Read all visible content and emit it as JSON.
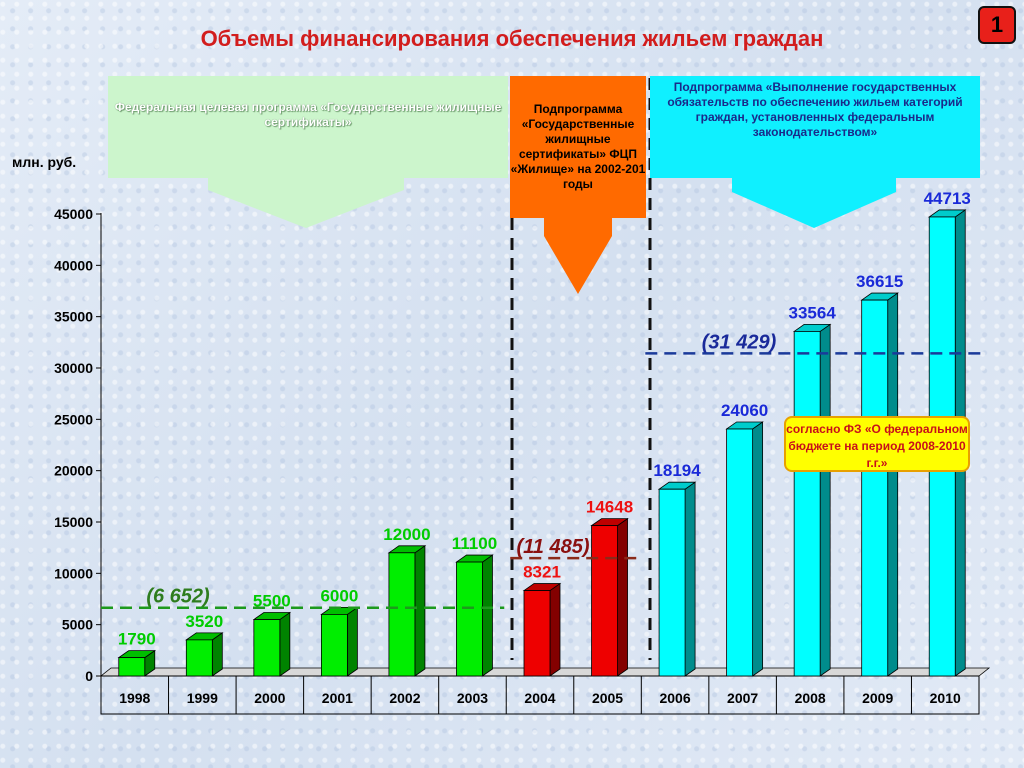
{
  "title": "Объемы финансирования обеспечения жильем граждан",
  "badge": "1",
  "callouts": {
    "left": "Федеральная целевая программа «Государственные жилищные сертификаты»",
    "middle": "Подпрограмма «Государственные жилищные сертификаты» ФЦП «Жилище» на 2002-201 годы",
    "right": "Подпрограмма «Выполнение государственных обязательств по обеспечению жильем категорий граждан, установленных федеральным законодательством»"
  },
  "note": "согласно ФЗ «О федеральном бюджете на период 2008-2010 г.г.»",
  "colors": {
    "green": "#00ee00",
    "red": "#ee0000",
    "cyan": "#00ffff",
    "label_green": "#00cc00",
    "label_red": "#ee1111",
    "label_blue": "#1a2ad8",
    "avg_green": "#2e7d1e",
    "avg_red": "#8a1010",
    "avg_blue": "#1a2a9a"
  },
  "chart_data": {
    "type": "bar",
    "ylabel": "млн. руб.",
    "ylim": [
      0,
      45000
    ],
    "yticks": [
      "0",
      "5000",
      "10000",
      "15000",
      "20000",
      "25000",
      "30000",
      "35000",
      "40000",
      "45000"
    ],
    "categories": [
      "1998",
      "1999",
      "2000",
      "2001",
      "2002",
      "2003",
      "2004",
      "2005",
      "2006",
      "2007",
      "2008",
      "2009",
      "2010"
    ],
    "values": [
      1790,
      3520,
      5500,
      6000,
      12000,
      11100,
      8321,
      14648,
      18194,
      24060,
      33564,
      36615,
      44713
    ],
    "value_labels": [
      "1790",
      "3520",
      "5500",
      "6000",
      "12000",
      "11100",
      "8321",
      "14648",
      "18194",
      "24060",
      "33564",
      "36615",
      "44713"
    ],
    "bar_groups": [
      "green",
      "green",
      "green",
      "green",
      "green",
      "green",
      "red",
      "red",
      "cyan",
      "cyan",
      "cyan",
      "cyan",
      "cyan"
    ],
    "averages": [
      {
        "label": "(6 652)",
        "value": 6652,
        "from": 0,
        "to": 5,
        "color": "green"
      },
      {
        "label": "(11 485)",
        "value": 11485,
        "from": 6,
        "to": 7,
        "color": "red"
      },
      {
        "label": "(31 429)",
        "value": 31429,
        "from": 8,
        "to": 12,
        "color": "blue"
      }
    ]
  }
}
